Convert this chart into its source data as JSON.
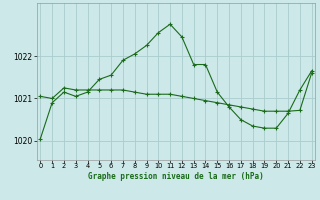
{
  "title": "Graphe pression niveau de la mer (hPa)",
  "bg_color": "#cce8e8",
  "grid_color": "#aacccc",
  "line_color": "#1a6b1a",
  "xlim": [
    -0.3,
    23.3
  ],
  "ylim": [
    1019.55,
    1023.25
  ],
  "yticks": [
    1020,
    1021,
    1022
  ],
  "xticks": [
    0,
    1,
    2,
    3,
    4,
    5,
    6,
    7,
    8,
    9,
    10,
    11,
    12,
    13,
    14,
    15,
    16,
    17,
    18,
    19,
    20,
    21,
    22,
    23
  ],
  "line1_x": [
    0,
    1,
    2,
    3,
    4,
    5,
    6,
    7,
    8,
    9,
    10,
    11,
    12,
    13,
    14,
    15,
    16,
    17,
    18,
    19,
    20,
    21,
    22,
    23
  ],
  "line1_y": [
    1020.05,
    1020.9,
    1021.15,
    1021.05,
    1021.15,
    1021.45,
    1021.55,
    1021.9,
    1022.05,
    1022.25,
    1022.55,
    1022.75,
    1022.45,
    1021.8,
    1021.8,
    1021.15,
    1020.8,
    1020.5,
    1020.35,
    1020.3,
    1020.3,
    1020.65,
    1021.2,
    1021.65
  ],
  "line2_x": [
    0,
    1,
    2,
    3,
    4,
    5,
    6,
    7,
    8,
    9,
    10,
    11,
    12,
    13,
    14,
    15,
    16,
    17,
    18,
    19,
    20,
    21,
    22,
    23
  ],
  "line2_y": [
    1021.05,
    1021.0,
    1021.25,
    1021.2,
    1021.2,
    1021.2,
    1021.2,
    1021.2,
    1021.15,
    1021.1,
    1021.1,
    1021.1,
    1021.05,
    1021.0,
    1020.95,
    1020.9,
    1020.85,
    1020.8,
    1020.75,
    1020.7,
    1020.7,
    1020.7,
    1020.72,
    1021.6
  ]
}
